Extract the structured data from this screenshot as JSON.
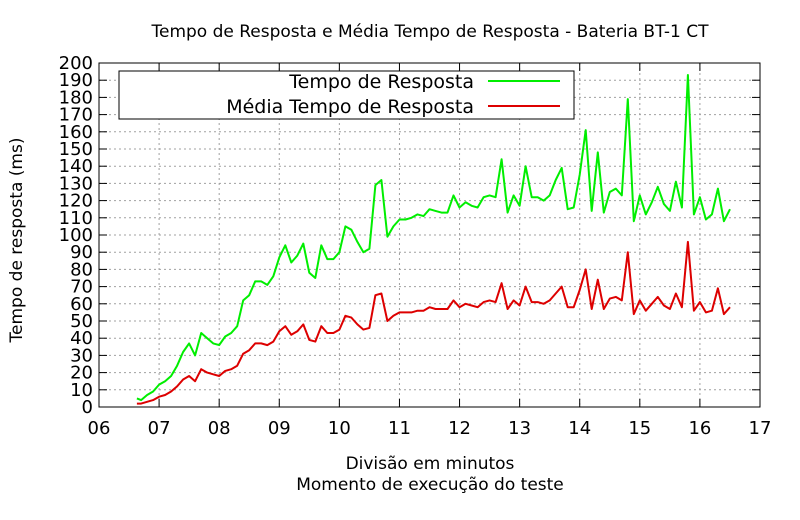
{
  "chart_data": {
    "type": "line",
    "title": "Tempo de Resposta e Média Tempo de Resposta - Bateria BT-1 CT",
    "xlabel": [
      "Divisão em minutos",
      "Momento de execução do teste"
    ],
    "ylabel": "Tempo de resposta (ms)",
    "xlim": [
      6,
      17
    ],
    "ylim": [
      0,
      200
    ],
    "x_ticks": [
      6,
      7,
      8,
      9,
      10,
      11,
      12,
      13,
      14,
      15,
      16,
      17
    ],
    "x_tick_labels": [
      "06",
      "07",
      "08",
      "09",
      "10",
      "11",
      "12",
      "13",
      "14",
      "15",
      "16",
      "17"
    ],
    "y_ticks": [
      0,
      10,
      20,
      30,
      40,
      50,
      60,
      70,
      80,
      90,
      100,
      110,
      120,
      130,
      140,
      150,
      160,
      170,
      180,
      190,
      200
    ],
    "grid": true,
    "legend_position": "top-left",
    "x": [
      6.63,
      6.7,
      6.8,
      6.9,
      7.0,
      7.1,
      7.2,
      7.3,
      7.4,
      7.5,
      7.6,
      7.7,
      7.8,
      7.9,
      8.0,
      8.1,
      8.2,
      8.3,
      8.4,
      8.5,
      8.6,
      8.7,
      8.8,
      8.9,
      9.0,
      9.1,
      9.2,
      9.3,
      9.4,
      9.5,
      9.6,
      9.7,
      9.8,
      9.9,
      10.0,
      10.1,
      10.2,
      10.3,
      10.4,
      10.5,
      10.6,
      10.7,
      10.8,
      10.9,
      11.0,
      11.1,
      11.2,
      11.3,
      11.4,
      11.5,
      11.6,
      11.7,
      11.8,
      11.9,
      12.0,
      12.1,
      12.2,
      12.3,
      12.4,
      12.5,
      12.6,
      12.7,
      12.8,
      12.9,
      13.0,
      13.1,
      13.2,
      13.3,
      13.4,
      13.5,
      13.6,
      13.7,
      13.8,
      13.9,
      14.0,
      14.1,
      14.2,
      14.3,
      14.4,
      14.5,
      14.6,
      14.7,
      14.8,
      14.9,
      15.0,
      15.1,
      15.2,
      15.3,
      15.4,
      15.5,
      15.6,
      15.7,
      15.8,
      15.9,
      16.0,
      16.1,
      16.2,
      16.3,
      16.4,
      16.5
    ],
    "series": [
      {
        "name": "Tempo de Resposta",
        "color": "#00ee00",
        "values": [
          5,
          4,
          7,
          9,
          13,
          15,
          18,
          24,
          32,
          37,
          30,
          43,
          40,
          37,
          36,
          41,
          43,
          47,
          62,
          65,
          73,
          73,
          71,
          76,
          87,
          94,
          84,
          88,
          95,
          78,
          75,
          94,
          86,
          86,
          90,
          105,
          103,
          96,
          90,
          92,
          129,
          132,
          99,
          105,
          109,
          109,
          110,
          112,
          111,
          115,
          114,
          113,
          113,
          123,
          116,
          119,
          117,
          116,
          122,
          123,
          122,
          144,
          113,
          123,
          117,
          140,
          122,
          122,
          120,
          123,
          132,
          139,
          115,
          116,
          135,
          161,
          114,
          148,
          113,
          125,
          127,
          123,
          179,
          108,
          123,
          112,
          119,
          128,
          118,
          114,
          131,
          116,
          193,
          112,
          122,
          109,
          112,
          127,
          108,
          115
        ]
      },
      {
        "name": "Média Tempo de Resposta",
        "color": "#dd0000",
        "values": [
          2,
          2,
          3,
          4,
          6,
          7,
          9,
          12,
          16,
          18,
          15,
          22,
          20,
          19,
          18,
          21,
          22,
          24,
          31,
          33,
          37,
          37,
          36,
          38,
          44,
          47,
          42,
          44,
          48,
          39,
          38,
          47,
          43,
          43,
          45,
          53,
          52,
          48,
          45,
          46,
          65,
          66,
          50,
          53,
          55,
          55,
          55,
          56,
          56,
          58,
          57,
          57,
          57,
          62,
          58,
          60,
          59,
          58,
          61,
          62,
          61,
          72,
          57,
          62,
          59,
          70,
          61,
          61,
          60,
          62,
          66,
          70,
          58,
          58,
          68,
          80,
          57,
          74,
          57,
          63,
          64,
          62,
          90,
          54,
          62,
          56,
          60,
          64,
          59,
          57,
          66,
          58,
          96,
          56,
          61,
          55,
          56,
          69,
          54,
          58
        ]
      }
    ]
  }
}
